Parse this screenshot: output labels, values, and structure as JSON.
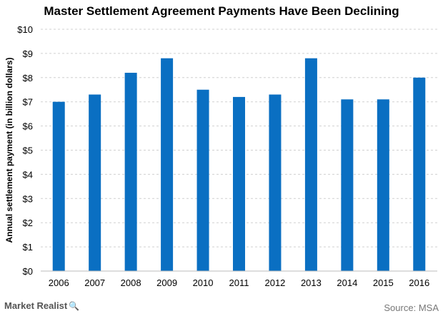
{
  "chart_data": {
    "type": "bar",
    "title": "Master Settlement Agreement Payments Have Been Declining",
    "xlabel": "",
    "ylabel": "Annual settlement payment (in billion dollars)",
    "categories": [
      "2006",
      "2007",
      "2008",
      "2009",
      "2010",
      "2011",
      "2012",
      "2013",
      "2014",
      "2015",
      "2016"
    ],
    "values": [
      7.0,
      7.3,
      8.2,
      8.8,
      7.5,
      7.2,
      7.3,
      8.8,
      7.1,
      7.1,
      8.0
    ],
    "ylim": [
      0,
      10
    ],
    "yticks": [
      "$0",
      "$1",
      "$2",
      "$3",
      "$4",
      "$5",
      "$6",
      "$7",
      "$8",
      "$9",
      "$10"
    ],
    "grid": true,
    "bar_color": "#0a6fc2"
  },
  "footer": {
    "brand": "Market Realist",
    "brand_icon": "magnifier-icon",
    "source_label": "Source:",
    "source_value": "MSA"
  }
}
